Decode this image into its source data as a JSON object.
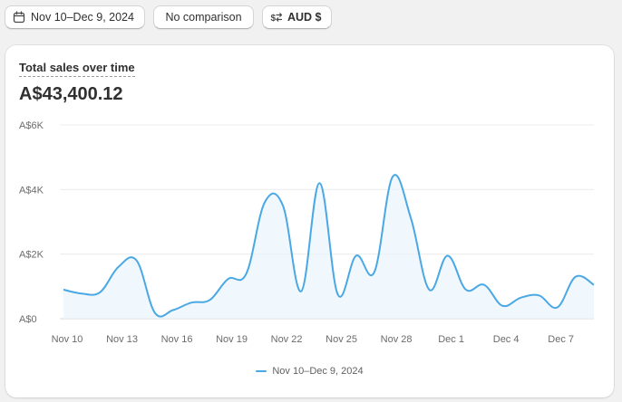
{
  "toolbar": {
    "date_range": {
      "label": "Nov 10–Dec 9, 2024",
      "icon": "calendar-icon"
    },
    "comparison": {
      "label": "No comparison"
    },
    "currency": {
      "label": "AUD $",
      "icon": "currency-exchange-icon"
    }
  },
  "card": {
    "title": "Total sales over time",
    "total": "A$43,400.12"
  },
  "colors": {
    "series": "#4aa8e4",
    "fill": "#eaf4fc",
    "grid": "#ececec",
    "axis": "#6b6b6b"
  },
  "chart_data": {
    "type": "line",
    "title": "Total sales over time",
    "ylim": [
      0,
      6000
    ],
    "y_ticks": [
      {
        "value": 0,
        "label": "A$0"
      },
      {
        "value": 2000,
        "label": "A$2K"
      },
      {
        "value": 4000,
        "label": "A$4K"
      },
      {
        "value": 6000,
        "label": "A$6K"
      }
    ],
    "x_ticks": [
      "Nov 10",
      "Nov 13",
      "Nov 16",
      "Nov 19",
      "Nov 22",
      "Nov 25",
      "Nov 28",
      "Dec 1",
      "Dec 4",
      "Dec 7"
    ],
    "grid": true,
    "legend_position": "bottom",
    "series": [
      {
        "name": "Nov 10–Dec 9, 2024",
        "x": [
          "Nov 10",
          "Nov 11",
          "Nov 12",
          "Nov 13",
          "Nov 14",
          "Nov 15",
          "Nov 16",
          "Nov 17",
          "Nov 18",
          "Nov 19",
          "Nov 20",
          "Nov 21",
          "Nov 22",
          "Nov 23",
          "Nov 24",
          "Nov 25",
          "Nov 26",
          "Nov 27",
          "Nov 28",
          "Nov 29",
          "Nov 30",
          "Dec 1",
          "Dec 2",
          "Dec 3",
          "Dec 4",
          "Dec 5",
          "Dec 6",
          "Dec 7",
          "Dec 8",
          "Dec 9"
        ],
        "values": [
          900,
          780,
          820,
          1600,
          1800,
          180,
          270,
          500,
          580,
          1230,
          1400,
          3600,
          3500,
          850,
          4200,
          750,
          1950,
          1450,
          4400,
          3100,
          900,
          1950,
          900,
          1050,
          400,
          650,
          720,
          350,
          1300,
          1050
        ]
      }
    ]
  }
}
